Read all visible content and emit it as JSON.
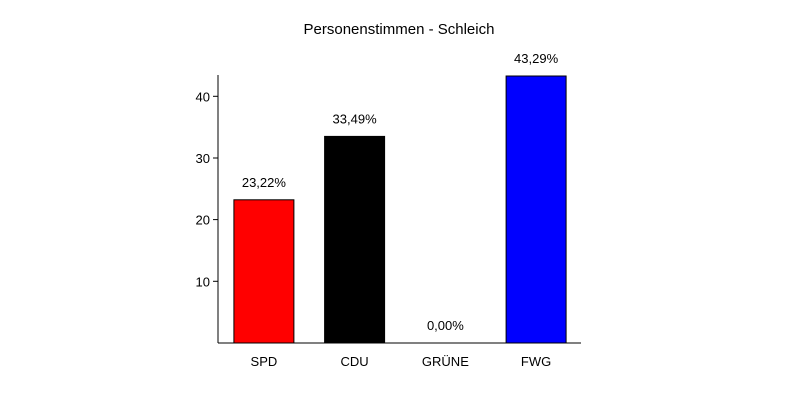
{
  "chart_data": {
    "type": "bar",
    "title": "Personenstimmen - Schleich",
    "xlabel": "",
    "ylabel": "",
    "categories": [
      "SPD",
      "CDU",
      "GRÜNE",
      "FWG"
    ],
    "values": [
      23.22,
      33.49,
      0.0,
      43.29
    ],
    "value_labels": [
      "23,22%",
      "33,49%",
      "0,00%",
      "43,29%"
    ],
    "colors": [
      "#ff0000",
      "#000000",
      "#00aa00",
      "#0000ff"
    ],
    "ylim": [
      0,
      43.29
    ],
    "yticks": [
      10,
      20,
      30,
      40
    ],
    "ytick_labels": [
      "10",
      "20",
      "30",
      "40"
    ],
    "grid": false,
    "legend": "none"
  }
}
